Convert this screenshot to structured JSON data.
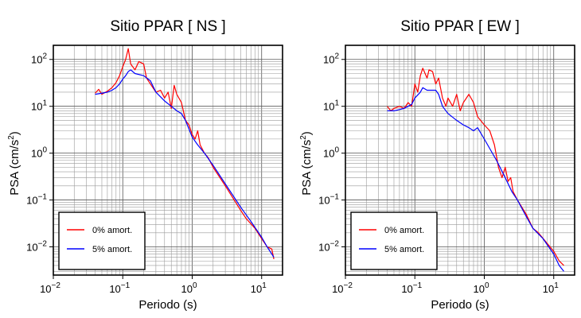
{
  "chart_data": [
    {
      "type": "line",
      "title": "Sitio PPAR [ NS ]",
      "xlabel": "Periodo (s)",
      "ylabel_main": "PSA (cm/s",
      "ylabel_sup": "2",
      "ylabel_close": ")",
      "x_scale": "log",
      "y_scale": "log",
      "xlim": [
        0.01,
        20
      ],
      "ylim": [
        0.0025,
        200
      ],
      "grid": true,
      "legend_position": "bottom-left",
      "x_ticks": [
        {
          "value": 0.01,
          "base": "10",
          "exp": "−2"
        },
        {
          "value": 0.1,
          "base": "10",
          "exp": "−1"
        },
        {
          "value": 1,
          "base": "10",
          "exp": "0"
        },
        {
          "value": 10,
          "base": "10",
          "exp": "1"
        }
      ],
      "y_ticks": [
        {
          "value": 0.01,
          "base": "10",
          "exp": "−2"
        },
        {
          "value": 0.1,
          "base": "10",
          "exp": "−1"
        },
        {
          "value": 1,
          "base": "10",
          "exp": "0"
        },
        {
          "value": 10,
          "base": "10",
          "exp": "1"
        },
        {
          "value": 100,
          "base": "10",
          "exp": "2"
        }
      ],
      "series": [
        {
          "name": "0% amort.",
          "color": "#ff0000",
          "points": [
            [
              0.04,
              19
            ],
            [
              0.045,
              23
            ],
            [
              0.05,
              18
            ],
            [
              0.06,
              21
            ],
            [
              0.07,
              25
            ],
            [
              0.08,
              32
            ],
            [
              0.09,
              45
            ],
            [
              0.1,
              70
            ],
            [
              0.11,
              100
            ],
            [
              0.12,
              170
            ],
            [
              0.13,
              80
            ],
            [
              0.15,
              60
            ],
            [
              0.17,
              90
            ],
            [
              0.2,
              80
            ],
            [
              0.22,
              40
            ],
            [
              0.25,
              30
            ],
            [
              0.3,
              20
            ],
            [
              0.35,
              22
            ],
            [
              0.4,
              15
            ],
            [
              0.45,
              20
            ],
            [
              0.5,
              9
            ],
            [
              0.55,
              28
            ],
            [
              0.6,
              18
            ],
            [
              0.7,
              12
            ],
            [
              0.8,
              5
            ],
            [
              0.9,
              4
            ],
            [
              1.0,
              2.5
            ],
            [
              1.1,
              2.0
            ],
            [
              1.2,
              3.0
            ],
            [
              1.3,
              1.5
            ],
            [
              1.5,
              1.0
            ],
            [
              1.7,
              0.8
            ],
            [
              2.0,
              0.5
            ],
            [
              3.0,
              0.2
            ],
            [
              5.0,
              0.06
            ],
            [
              6.0,
              0.04
            ],
            [
              8.0,
              0.025
            ],
            [
              10.0,
              0.015
            ],
            [
              12.0,
              0.01
            ],
            [
              14.0,
              0.009
            ],
            [
              15.0,
              0.0055
            ]
          ]
        },
        {
          "name": "5% amort.",
          "color": "#0000ff",
          "points": [
            [
              0.04,
              18
            ],
            [
              0.05,
              19
            ],
            [
              0.06,
              20
            ],
            [
              0.07,
              22
            ],
            [
              0.08,
              25
            ],
            [
              0.09,
              30
            ],
            [
              0.1,
              38
            ],
            [
              0.11,
              45
            ],
            [
              0.12,
              55
            ],
            [
              0.13,
              60
            ],
            [
              0.15,
              50
            ],
            [
              0.2,
              45
            ],
            [
              0.25,
              35
            ],
            [
              0.3,
              20
            ],
            [
              0.4,
              13
            ],
            [
              0.5,
              10
            ],
            [
              0.6,
              8
            ],
            [
              0.7,
              7
            ],
            [
              0.8,
              5
            ],
            [
              1.0,
              2.2
            ],
            [
              1.2,
              1.5
            ],
            [
              1.5,
              1.0
            ],
            [
              2.0,
              0.55
            ],
            [
              3.0,
              0.22
            ],
            [
              5.0,
              0.07
            ],
            [
              7.0,
              0.035
            ],
            [
              10.0,
              0.016
            ],
            [
              12.0,
              0.01
            ],
            [
              15.0,
              0.006
            ]
          ]
        }
      ]
    },
    {
      "type": "line",
      "title": "Sitio PPAR [ EW ]",
      "xlabel": "Periodo (s)",
      "ylabel_main": "PSA (cm/s",
      "ylabel_sup": "2",
      "ylabel_close": ")",
      "x_scale": "log",
      "y_scale": "log",
      "xlim": [
        0.01,
        20
      ],
      "ylim": [
        0.0025,
        200
      ],
      "grid": true,
      "legend_position": "bottom-left",
      "x_ticks": [
        {
          "value": 0.01,
          "base": "10",
          "exp": "−2"
        },
        {
          "value": 0.1,
          "base": "10",
          "exp": "−1"
        },
        {
          "value": 1,
          "base": "10",
          "exp": "0"
        },
        {
          "value": 10,
          "base": "10",
          "exp": "1"
        }
      ],
      "y_ticks": [
        {
          "value": 0.01,
          "base": "10",
          "exp": "−2"
        },
        {
          "value": 0.1,
          "base": "10",
          "exp": "−1"
        },
        {
          "value": 1,
          "base": "10",
          "exp": "0"
        },
        {
          "value": 10,
          "base": "10",
          "exp": "1"
        },
        {
          "value": 100,
          "base": "10",
          "exp": "2"
        }
      ],
      "series": [
        {
          "name": "0% amort.",
          "color": "#ff0000",
          "points": [
            [
              0.04,
              10
            ],
            [
              0.045,
              8
            ],
            [
              0.05,
              9
            ],
            [
              0.06,
              10
            ],
            [
              0.07,
              9
            ],
            [
              0.08,
              12
            ],
            [
              0.09,
              10
            ],
            [
              0.1,
              30
            ],
            [
              0.11,
              20
            ],
            [
              0.12,
              45
            ],
            [
              0.13,
              65
            ],
            [
              0.15,
              40
            ],
            [
              0.16,
              60
            ],
            [
              0.18,
              55
            ],
            [
              0.2,
              30
            ],
            [
              0.22,
              40
            ],
            [
              0.25,
              15
            ],
            [
              0.28,
              10
            ],
            [
              0.3,
              15
            ],
            [
              0.35,
              10
            ],
            [
              0.4,
              18
            ],
            [
              0.45,
              8
            ],
            [
              0.5,
              12
            ],
            [
              0.6,
              18
            ],
            [
              0.7,
              12
            ],
            [
              0.8,
              6
            ],
            [
              1.0,
              4
            ],
            [
              1.2,
              3
            ],
            [
              1.4,
              1.5
            ],
            [
              1.6,
              0.5
            ],
            [
              1.8,
              0.3
            ],
            [
              2.0,
              0.5
            ],
            [
              2.2,
              0.25
            ],
            [
              2.4,
              0.3
            ],
            [
              2.6,
              0.15
            ],
            [
              3.0,
              0.1
            ],
            [
              4.0,
              0.05
            ],
            [
              5.0,
              0.025
            ],
            [
              6.0,
              0.02
            ],
            [
              8.0,
              0.012
            ],
            [
              10.0,
              0.008
            ],
            [
              12.0,
              0.005
            ],
            [
              14.0,
              0.004
            ]
          ]
        },
        {
          "name": "5% amort.",
          "color": "#0000ff",
          "points": [
            [
              0.04,
              8
            ],
            [
              0.05,
              8
            ],
            [
              0.06,
              8.5
            ],
            [
              0.07,
              9
            ],
            [
              0.08,
              10
            ],
            [
              0.09,
              11
            ],
            [
              0.1,
              15
            ],
            [
              0.12,
              20
            ],
            [
              0.13,
              25
            ],
            [
              0.15,
              22
            ],
            [
              0.2,
              22
            ],
            [
              0.22,
              18
            ],
            [
              0.25,
              10
            ],
            [
              0.3,
              7
            ],
            [
              0.4,
              5
            ],
            [
              0.5,
              4
            ],
            [
              0.6,
              3.5
            ],
            [
              0.7,
              3
            ],
            [
              0.8,
              3.5
            ],
            [
              1.0,
              2
            ],
            [
              1.5,
              0.7
            ],
            [
              2.0,
              0.3
            ],
            [
              2.5,
              0.15
            ],
            [
              3.0,
              0.1
            ],
            [
              4.0,
              0.045
            ],
            [
              5.0,
              0.025
            ],
            [
              7.0,
              0.015
            ],
            [
              10.0,
              0.007
            ],
            [
              12.0,
              0.004
            ],
            [
              14.0,
              0.003
            ]
          ]
        }
      ]
    }
  ]
}
